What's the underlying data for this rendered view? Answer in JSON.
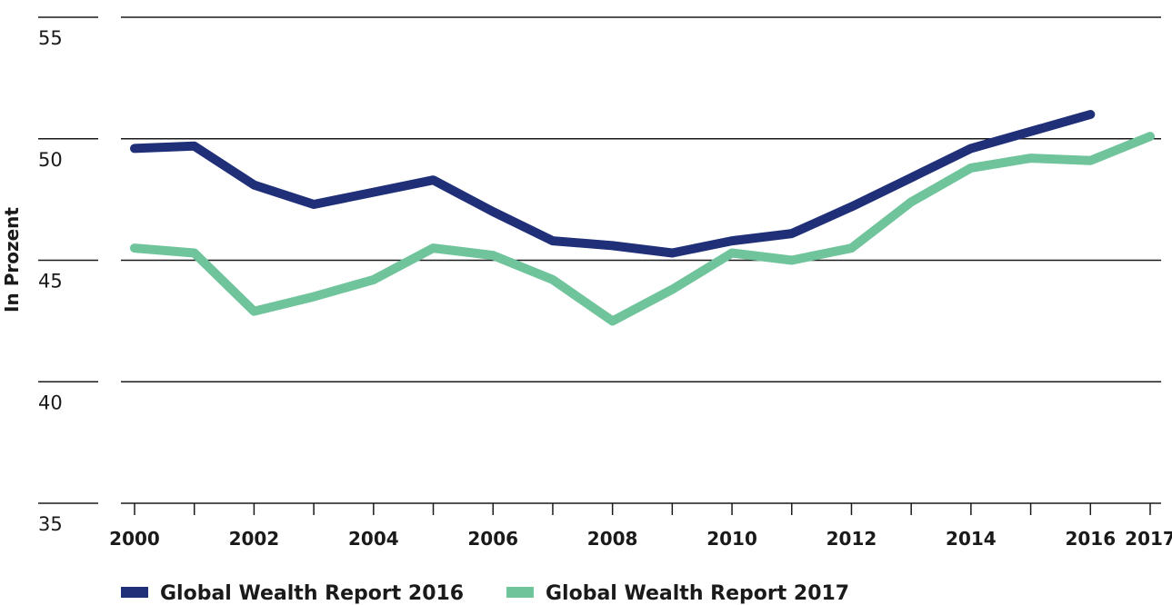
{
  "chart_data": {
    "type": "line",
    "title": "",
    "xlabel": "",
    "ylabel": "In Prozent",
    "ylim": [
      35,
      55
    ],
    "yticks": [
      35,
      40,
      45,
      50,
      55
    ],
    "x": [
      2000,
      2001,
      2002,
      2003,
      2004,
      2005,
      2006,
      2007,
      2008,
      2009,
      2010,
      2011,
      2012,
      2013,
      2014,
      2015,
      2016,
      2017
    ],
    "xticklabels": [
      "2000",
      "2002",
      "2004",
      "2006",
      "2008",
      "2010",
      "2012",
      "2014",
      "2016",
      "2017"
    ],
    "xtick_years": [
      2000,
      2002,
      2004,
      2006,
      2008,
      2010,
      2012,
      2014,
      2016,
      2017
    ],
    "grid": true,
    "legend": "bottom",
    "series": [
      {
        "name": "Global Wealth Report 2016",
        "color": "#1f2f78",
        "x": [
          2000,
          2001,
          2002,
          2003,
          2004,
          2005,
          2006,
          2007,
          2008,
          2009,
          2010,
          2011,
          2012,
          2013,
          2014,
          2015,
          2016
        ],
        "values": [
          49.6,
          49.7,
          48.1,
          47.3,
          47.8,
          48.3,
          47.0,
          45.8,
          45.6,
          45.3,
          45.8,
          46.1,
          47.2,
          48.4,
          49.6,
          50.3,
          51.0
        ]
      },
      {
        "name": "Global Wealth Report 2017",
        "color": "#6fc49c",
        "x": [
          2000,
          2001,
          2002,
          2003,
          2004,
          2005,
          2006,
          2007,
          2008,
          2009,
          2010,
          2011,
          2012,
          2013,
          2014,
          2015,
          2016,
          2017
        ],
        "values": [
          45.5,
          45.3,
          42.9,
          43.5,
          44.2,
          45.5,
          45.2,
          44.2,
          42.5,
          43.8,
          45.3,
          45.0,
          45.5,
          47.4,
          48.8,
          49.2,
          49.1,
          50.1
        ]
      }
    ]
  }
}
